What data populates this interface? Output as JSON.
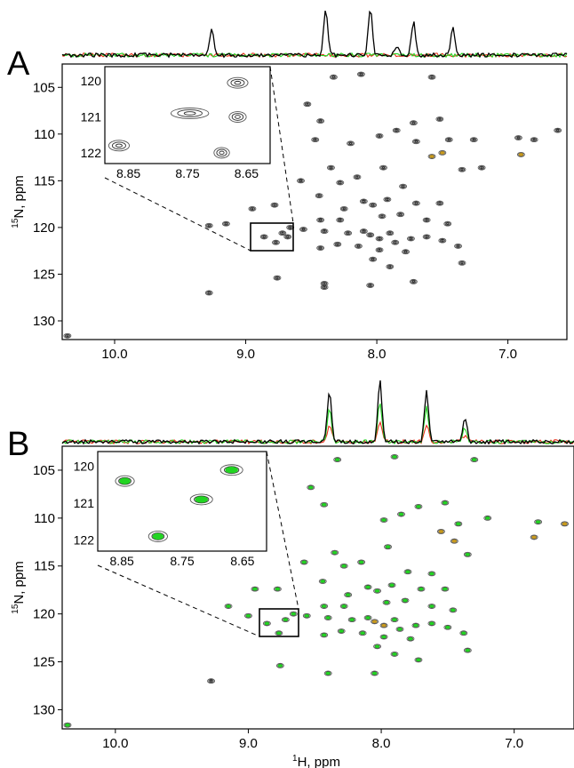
{
  "chart_data": [
    {
      "type": "scatter",
      "panel_label": "A",
      "xlabel": "",
      "ylabel_sup": "15",
      "ylabel": "N, ppm",
      "x_reversed": true,
      "xlim": [
        10.4,
        6.55
      ],
      "ylim": [
        102.5,
        132
      ],
      "x_ticks": [
        "10.0",
        "9.0",
        "8.0",
        "7.0"
      ],
      "x_tick_values": [
        10.0,
        9.0,
        8.0,
        7.0
      ],
      "y_ticks": [
        "105",
        "110",
        "115",
        "120",
        "125",
        "130"
      ],
      "y_tick_values": [
        105,
        110,
        115,
        120,
        125,
        130
      ],
      "spectrum_peaks_black": [
        [
          9.26,
          0.55
        ],
        [
          8.39,
          0.95
        ],
        [
          8.05,
          1.0
        ],
        [
          7.85,
          0.2
        ],
        [
          7.72,
          0.72
        ],
        [
          7.42,
          0.58
        ]
      ],
      "spectrum_peaks_green": [],
      "spectrum_peaks_red": [],
      "peaks": [
        {
          "x": 8.53,
          "y": 106.8,
          "c": "k"
        },
        {
          "x": 8.33,
          "y": 103.9,
          "c": "k"
        },
        {
          "x": 8.12,
          "y": 103.6,
          "c": "k"
        },
        {
          "x": 7.58,
          "y": 103.9,
          "c": "k"
        },
        {
          "x": 8.43,
          "y": 108.6,
          "c": "k"
        },
        {
          "x": 7.52,
          "y": 108.4,
          "c": "k"
        },
        {
          "x": 7.72,
          "y": 108.8,
          "c": "k"
        },
        {
          "x": 7.85,
          "y": 109.6,
          "c": "k"
        },
        {
          "x": 7.98,
          "y": 110.2,
          "c": "k"
        },
        {
          "x": 8.2,
          "y": 111.0,
          "c": "k"
        },
        {
          "x": 8.47,
          "y": 110.6,
          "c": "k"
        },
        {
          "x": 7.7,
          "y": 110.8,
          "c": "k"
        },
        {
          "x": 7.45,
          "y": 110.6,
          "c": "k"
        },
        {
          "x": 7.26,
          "y": 110.6,
          "c": "k"
        },
        {
          "x": 6.8,
          "y": 110.6,
          "c": "k"
        },
        {
          "x": 6.62,
          "y": 109.6,
          "c": "k"
        },
        {
          "x": 6.92,
          "y": 110.4,
          "c": "k"
        },
        {
          "x": 7.58,
          "y": 112.4,
          "c": "o"
        },
        {
          "x": 7.5,
          "y": 112.0,
          "c": "o"
        },
        {
          "x": 6.9,
          "y": 112.2,
          "c": "o"
        },
        {
          "x": 7.95,
          "y": 113.6,
          "c": "k"
        },
        {
          "x": 8.35,
          "y": 113.6,
          "c": "k"
        },
        {
          "x": 8.15,
          "y": 114.6,
          "c": "k"
        },
        {
          "x": 7.35,
          "y": 113.8,
          "c": "k"
        },
        {
          "x": 8.58,
          "y": 115.0,
          "c": "k"
        },
        {
          "x": 8.28,
          "y": 115.2,
          "c": "k"
        },
        {
          "x": 7.8,
          "y": 115.6,
          "c": "k"
        },
        {
          "x": 8.44,
          "y": 116.6,
          "c": "k"
        },
        {
          "x": 8.1,
          "y": 117.2,
          "c": "k"
        },
        {
          "x": 8.03,
          "y": 117.6,
          "c": "k"
        },
        {
          "x": 7.92,
          "y": 117.0,
          "c": "k"
        },
        {
          "x": 7.7,
          "y": 117.4,
          "c": "k"
        },
        {
          "x": 7.52,
          "y": 117.4,
          "c": "k"
        },
        {
          "x": 8.78,
          "y": 117.6,
          "c": "k"
        },
        {
          "x": 8.25,
          "y": 118.0,
          "c": "k"
        },
        {
          "x": 8.43,
          "y": 119.2,
          "c": "k"
        },
        {
          "x": 8.28,
          "y": 119.2,
          "c": "k"
        },
        {
          "x": 7.96,
          "y": 118.8,
          "c": "k"
        },
        {
          "x": 7.82,
          "y": 118.6,
          "c": "k"
        },
        {
          "x": 7.62,
          "y": 119.2,
          "c": "k"
        },
        {
          "x": 7.46,
          "y": 119.6,
          "c": "k"
        },
        {
          "x": 8.56,
          "y": 120.2,
          "c": "k"
        },
        {
          "x": 8.4,
          "y": 120.4,
          "c": "k"
        },
        {
          "x": 8.22,
          "y": 120.6,
          "c": "k"
        },
        {
          "x": 8.1,
          "y": 120.4,
          "c": "k"
        },
        {
          "x": 8.05,
          "y": 120.8,
          "c": "k"
        },
        {
          "x": 7.98,
          "y": 121.2,
          "c": "k"
        },
        {
          "x": 7.9,
          "y": 120.6,
          "c": "k"
        },
        {
          "x": 7.86,
          "y": 121.6,
          "c": "k"
        },
        {
          "x": 7.74,
          "y": 121.2,
          "c": "k"
        },
        {
          "x": 7.62,
          "y": 121.0,
          "c": "k"
        },
        {
          "x": 8.3,
          "y": 121.8,
          "c": "k"
        },
        {
          "x": 8.14,
          "y": 122.0,
          "c": "k"
        },
        {
          "x": 7.98,
          "y": 122.4,
          "c": "k"
        },
        {
          "x": 7.78,
          "y": 122.6,
          "c": "k"
        },
        {
          "x": 8.43,
          "y": 122.2,
          "c": "k"
        },
        {
          "x": 7.5,
          "y": 121.4,
          "c": "k"
        },
        {
          "x": 7.38,
          "y": 122.0,
          "c": "k"
        },
        {
          "x": 8.03,
          "y": 123.4,
          "c": "k"
        },
        {
          "x": 7.9,
          "y": 124.2,
          "c": "k"
        },
        {
          "x": 9.15,
          "y": 119.6,
          "c": "k"
        },
        {
          "x": 9.28,
          "y": 119.8,
          "c": "k"
        },
        {
          "x": 8.95,
          "y": 118.0,
          "c": "k"
        },
        {
          "x": 8.76,
          "y": 125.4,
          "c": "k"
        },
        {
          "x": 8.4,
          "y": 126.0,
          "c": "k"
        },
        {
          "x": 8.4,
          "y": 126.4,
          "c": "k"
        },
        {
          "x": 9.28,
          "y": 127.0,
          "c": "k"
        },
        {
          "x": 8.05,
          "y": 126.2,
          "c": "k"
        },
        {
          "x": 7.72,
          "y": 125.8,
          "c": "k"
        },
        {
          "x": 10.36,
          "y": 131.6,
          "c": "k"
        },
        {
          "x": 7.35,
          "y": 123.8,
          "c": "k"
        },
        {
          "x": 7.2,
          "y": 113.6,
          "c": "k"
        },
        {
          "x": 8.86,
          "y": 121.0,
          "c": "k"
        },
        {
          "x": 8.72,
          "y": 120.6,
          "c": "k"
        },
        {
          "x": 8.66,
          "y": 120.0,
          "c": "k"
        },
        {
          "x": 8.68,
          "y": 121.0,
          "c": "k"
        },
        {
          "x": 8.77,
          "y": 121.6,
          "c": "k"
        }
      ],
      "inset": {
        "xlim": [
          8.89,
          8.61
        ],
        "ylim": [
          119.6,
          122.3
        ],
        "x_ticks": [
          "8.85",
          "8.75",
          "8.65"
        ],
        "x_tick_values": [
          8.85,
          8.75,
          8.65
        ],
        "y_ticks": [
          "120",
          "121",
          "122"
        ],
        "y_tick_values": [
          120,
          121,
          122
        ],
        "peaks": [
          {
            "x": 8.665,
            "y": 120.05,
            "c": "k",
            "w": 1.2
          },
          {
            "x": 8.746,
            "y": 120.9,
            "c": "k",
            "w": 2.2
          },
          {
            "x": 8.665,
            "y": 121.0,
            "c": "k",
            "w": 1.0
          },
          {
            "x": 8.866,
            "y": 121.8,
            "c": "k",
            "w": 1.2
          },
          {
            "x": 8.692,
            "y": 122.0,
            "c": "k",
            "w": 0.9
          }
        ]
      }
    },
    {
      "type": "scatter",
      "panel_label": "B",
      "xlabel_sup": "1",
      "xlabel": "H, ppm",
      "ylabel_sup": "15",
      "ylabel": "N, ppm",
      "x_reversed": true,
      "xlim": [
        10.4,
        6.55
      ],
      "ylim": [
        102.5,
        132
      ],
      "x_ticks": [
        "10.0",
        "9.0",
        "8.0",
        "7.0"
      ],
      "x_tick_values": [
        10.0,
        9.0,
        8.0,
        7.0
      ],
      "y_ticks": [
        "105",
        "110",
        "115",
        "120",
        "125",
        "130"
      ],
      "y_tick_values": [
        105,
        110,
        115,
        120,
        125,
        130
      ],
      "spectrum_peaks_black": [
        [
          8.39,
          0.72
        ],
        [
          8.01,
          0.88
        ],
        [
          7.66,
          0.72
        ],
        [
          7.37,
          0.35
        ]
      ],
      "spectrum_peaks_green": [
        [
          8.39,
          0.5
        ],
        [
          8.01,
          0.58
        ],
        [
          7.66,
          0.5
        ],
        [
          7.37,
          0.2
        ]
      ],
      "spectrum_peaks_red": [
        [
          8.39,
          0.25
        ],
        [
          8.01,
          0.3
        ],
        [
          7.66,
          0.25
        ],
        [
          7.37,
          0.1
        ]
      ],
      "peaks": [
        {
          "x": 8.53,
          "y": 106.8,
          "c": "g"
        },
        {
          "x": 8.33,
          "y": 103.9,
          "c": "g"
        },
        {
          "x": 7.9,
          "y": 103.6,
          "c": "g"
        },
        {
          "x": 7.3,
          "y": 103.9,
          "c": "g"
        },
        {
          "x": 8.43,
          "y": 108.6,
          "c": "g"
        },
        {
          "x": 7.52,
          "y": 108.4,
          "c": "g"
        },
        {
          "x": 7.72,
          "y": 108.8,
          "c": "g"
        },
        {
          "x": 7.85,
          "y": 109.6,
          "c": "g"
        },
        {
          "x": 7.98,
          "y": 110.2,
          "c": "g"
        },
        {
          "x": 7.2,
          "y": 110.0,
          "c": "g"
        },
        {
          "x": 7.42,
          "y": 110.6,
          "c": "g"
        },
        {
          "x": 6.82,
          "y": 110.4,
          "c": "g"
        },
        {
          "x": 7.55,
          "y": 111.4,
          "c": "o"
        },
        {
          "x": 7.45,
          "y": 112.4,
          "c": "o"
        },
        {
          "x": 6.85,
          "y": 112.0,
          "c": "o"
        },
        {
          "x": 6.62,
          "y": 110.6,
          "c": "o"
        },
        {
          "x": 7.95,
          "y": 113.0,
          "c": "g"
        },
        {
          "x": 8.35,
          "y": 113.6,
          "c": "g"
        },
        {
          "x": 8.15,
          "y": 114.6,
          "c": "g"
        },
        {
          "x": 7.35,
          "y": 113.8,
          "c": "g"
        },
        {
          "x": 8.58,
          "y": 114.6,
          "c": "g"
        },
        {
          "x": 8.28,
          "y": 115.0,
          "c": "g"
        },
        {
          "x": 7.8,
          "y": 115.6,
          "c": "g"
        },
        {
          "x": 7.62,
          "y": 115.8,
          "c": "g"
        },
        {
          "x": 8.44,
          "y": 116.6,
          "c": "g"
        },
        {
          "x": 8.1,
          "y": 117.2,
          "c": "g"
        },
        {
          "x": 8.03,
          "y": 117.6,
          "c": "g"
        },
        {
          "x": 7.92,
          "y": 117.0,
          "c": "g"
        },
        {
          "x": 7.7,
          "y": 117.4,
          "c": "g"
        },
        {
          "x": 7.52,
          "y": 117.4,
          "c": "g"
        },
        {
          "x": 8.78,
          "y": 117.4,
          "c": "g"
        },
        {
          "x": 8.25,
          "y": 118.0,
          "c": "g"
        },
        {
          "x": 8.43,
          "y": 119.2,
          "c": "g"
        },
        {
          "x": 8.28,
          "y": 119.2,
          "c": "g"
        },
        {
          "x": 7.96,
          "y": 118.8,
          "c": "g"
        },
        {
          "x": 7.82,
          "y": 118.6,
          "c": "g"
        },
        {
          "x": 7.62,
          "y": 119.2,
          "c": "g"
        },
        {
          "x": 7.46,
          "y": 119.6,
          "c": "g"
        },
        {
          "x": 8.56,
          "y": 120.2,
          "c": "g"
        },
        {
          "x": 8.4,
          "y": 120.4,
          "c": "g"
        },
        {
          "x": 8.22,
          "y": 120.6,
          "c": "g"
        },
        {
          "x": 8.1,
          "y": 120.4,
          "c": "g"
        },
        {
          "x": 8.05,
          "y": 120.8,
          "c": "o"
        },
        {
          "x": 7.98,
          "y": 121.2,
          "c": "o"
        },
        {
          "x": 7.9,
          "y": 120.6,
          "c": "g"
        },
        {
          "x": 7.86,
          "y": 121.6,
          "c": "g"
        },
        {
          "x": 7.74,
          "y": 121.2,
          "c": "g"
        },
        {
          "x": 7.62,
          "y": 121.0,
          "c": "g"
        },
        {
          "x": 8.3,
          "y": 121.8,
          "c": "g"
        },
        {
          "x": 8.14,
          "y": 122.0,
          "c": "g"
        },
        {
          "x": 7.98,
          "y": 122.4,
          "c": "g"
        },
        {
          "x": 7.78,
          "y": 122.6,
          "c": "g"
        },
        {
          "x": 8.43,
          "y": 122.2,
          "c": "g"
        },
        {
          "x": 7.5,
          "y": 121.4,
          "c": "g"
        },
        {
          "x": 7.38,
          "y": 122.0,
          "c": "g"
        },
        {
          "x": 8.03,
          "y": 123.4,
          "c": "g"
        },
        {
          "x": 7.9,
          "y": 124.2,
          "c": "g"
        },
        {
          "x": 9.15,
          "y": 119.2,
          "c": "g"
        },
        {
          "x": 8.95,
          "y": 117.4,
          "c": "g"
        },
        {
          "x": 8.76,
          "y": 125.4,
          "c": "g"
        },
        {
          "x": 8.4,
          "y": 126.2,
          "c": "g"
        },
        {
          "x": 9.28,
          "y": 127.0,
          "c": "k"
        },
        {
          "x": 8.05,
          "y": 126.2,
          "c": "g"
        },
        {
          "x": 7.72,
          "y": 124.8,
          "c": "g"
        },
        {
          "x": 10.36,
          "y": 131.6,
          "c": "g"
        },
        {
          "x": 7.35,
          "y": 123.8,
          "c": "g"
        },
        {
          "x": 8.86,
          "y": 121.0,
          "c": "g"
        },
        {
          "x": 8.72,
          "y": 120.6,
          "c": "g"
        },
        {
          "x": 8.66,
          "y": 120.0,
          "c": "g"
        },
        {
          "x": 8.77,
          "y": 122.0,
          "c": "g"
        },
        {
          "x": 9.0,
          "y": 120.2,
          "c": "g"
        }
      ],
      "inset": {
        "xlim": [
          8.89,
          8.61
        ],
        "ylim": [
          119.6,
          122.3
        ],
        "x_ticks": [
          "8.85",
          "8.75",
          "8.65"
        ],
        "x_tick_values": [
          8.85,
          8.75,
          8.65
        ],
        "y_ticks": [
          "120",
          "121",
          "122"
        ],
        "y_tick_values": [
          120,
          121,
          122
        ],
        "peaks": [
          {
            "x": 8.668,
            "y": 120.1,
            "c": "g",
            "w": 1.3
          },
          {
            "x": 8.845,
            "y": 120.4,
            "c": "g",
            "w": 1.1
          },
          {
            "x": 8.718,
            "y": 120.9,
            "c": "g",
            "w": 1.3
          },
          {
            "x": 8.79,
            "y": 121.9,
            "c": "g",
            "w": 1.1
          }
        ]
      }
    }
  ],
  "colors": {
    "black": "#000000",
    "green": "#22d422",
    "red": "#e8301a",
    "orange": "#c99a1c"
  }
}
